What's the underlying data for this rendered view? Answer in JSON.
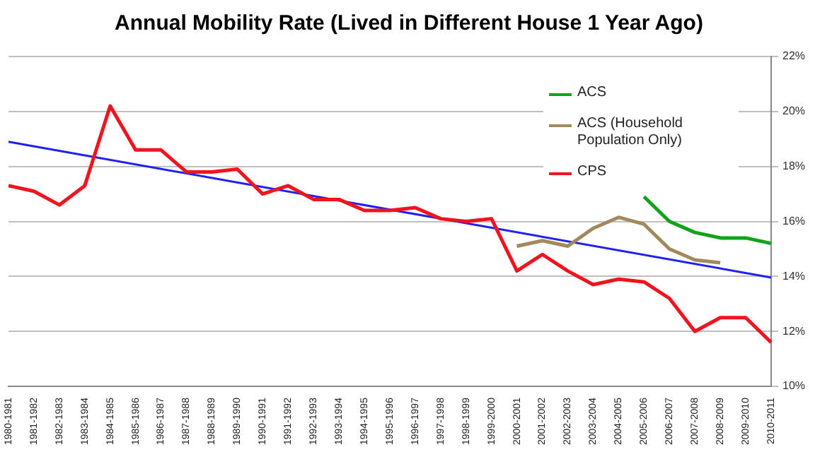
{
  "chart_data": {
    "type": "line",
    "title": "Annual Mobility Rate (Lived in Different House 1 Year Ago)",
    "categories": [
      "1980-1981",
      "1981-1982",
      "1982-1983",
      "1983-1984",
      "1984-1985",
      "1985-1986",
      "1986-1987",
      "1987-1988",
      "1988-1989",
      "1989-1990",
      "1990-1991",
      "1991-1992",
      "1992-1993",
      "1993-1994",
      "1994-1995",
      "1995-1996",
      "1996-1997",
      "1997-1998",
      "1998-1999",
      "1999-2000",
      "2000-2001",
      "2001-2002",
      "2002-2003",
      "2003-2004",
      "2004-2005",
      "2005-2006",
      "2006-2007",
      "2007-2008",
      "2008-2009",
      "2009-2010",
      "2010-2011"
    ],
    "series": [
      {
        "name": "ACS",
        "color": "#13a31b",
        "values": [
          null,
          null,
          null,
          null,
          null,
          null,
          null,
          null,
          null,
          null,
          null,
          null,
          null,
          null,
          null,
          null,
          null,
          null,
          null,
          null,
          null,
          null,
          null,
          null,
          null,
          16.9,
          16.0,
          15.6,
          15.4,
          15.4,
          15.2
        ]
      },
      {
        "name": "ACS (Household Population Only)",
        "color": "#a08a5c",
        "values": [
          null,
          null,
          null,
          null,
          null,
          null,
          null,
          null,
          null,
          null,
          null,
          null,
          null,
          null,
          null,
          null,
          null,
          null,
          null,
          null,
          15.1,
          15.3,
          15.1,
          15.75,
          16.15,
          15.9,
          15.0,
          14.6,
          14.5,
          null,
          null
        ]
      },
      {
        "name": "CPS",
        "color": "#f0141e",
        "values": [
          17.3,
          17.1,
          16.6,
          17.3,
          20.2,
          18.6,
          18.6,
          17.8,
          17.8,
          17.9,
          17.0,
          17.3,
          16.8,
          16.8,
          16.4,
          16.4,
          16.5,
          16.1,
          16.0,
          16.1,
          14.2,
          14.8,
          14.2,
          13.7,
          13.9,
          13.8,
          13.2,
          12.0,
          12.5,
          12.5,
          11.6
        ]
      },
      {
        "type": "line",
        "color": "#2020f0",
        "values": [
          18.9,
          null,
          null,
          null,
          null,
          null,
          null,
          null,
          null,
          null,
          null,
          null,
          null,
          null,
          null,
          null,
          null,
          null,
          null,
          null,
          null,
          null,
          null,
          null,
          null,
          null,
          null,
          null,
          null,
          null,
          13.96
        ]
      }
    ],
    "ylim": [
      10,
      22
    ],
    "yticks": [
      {
        "value": 10,
        "label": "10%"
      },
      {
        "value": 12,
        "label": "12%"
      },
      {
        "value": 14,
        "label": "14%"
      },
      {
        "value": 16,
        "label": "16%"
      },
      {
        "value": 18,
        "label": "18%"
      },
      {
        "value": 20,
        "label": "20%"
      },
      {
        "value": 22,
        "label": "22%"
      }
    ],
    "grid": "y",
    "legend": "top right",
    "marker": "none"
  }
}
